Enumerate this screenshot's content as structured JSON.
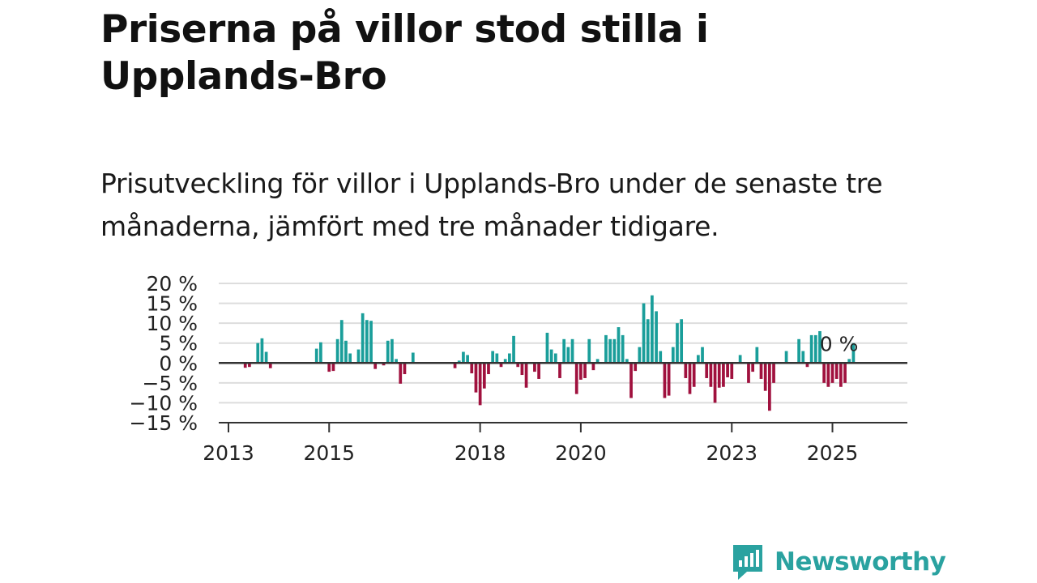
{
  "header": {
    "title": "Priserna på villor stod stilla i Upplands-Bro",
    "subtitle": "Prisutveckling för villor i Upplands-Bro under de senaste tre månaderna, jämfört med tre månader tidigare."
  },
  "brand": {
    "name": "Newsworthy",
    "color": "#2aa2a0",
    "icon": "newsworthy-chart-bubble-icon"
  },
  "colors": {
    "positive": "#1a9e9a",
    "negative": "#a0113e",
    "grid": "#dddddd",
    "axis": "#333333"
  },
  "chart_data": {
    "type": "bar",
    "x_start": "2013-01",
    "x_end": "2026-03",
    "ylim": [
      -15,
      20
    ],
    "yticks": [
      20,
      15,
      10,
      5,
      0,
      -5,
      -10,
      -15
    ],
    "ytick_labels": [
      "20 %",
      "15 %",
      "10 %",
      "5 %",
      "0 %",
      "−5 %",
      "−10 %",
      "−15 %"
    ],
    "xticks": [
      "2013",
      "2015",
      "2018",
      "2020",
      "2023",
      "2025"
    ],
    "end_label": "0 %",
    "grid": true,
    "points": [
      {
        "date": "2013-05",
        "value": -1.2
      },
      {
        "date": "2013-06",
        "value": -1.0
      },
      {
        "date": "2013-08",
        "value": 5.0
      },
      {
        "date": "2013-09",
        "value": 6.2
      },
      {
        "date": "2013-10",
        "value": 2.8
      },
      {
        "date": "2013-11",
        "value": -1.3
      },
      {
        "date": "2014-10",
        "value": 3.6
      },
      {
        "date": "2014-11",
        "value": 5.2
      },
      {
        "date": "2015-01",
        "value": -2.2
      },
      {
        "date": "2015-02",
        "value": -2.0
      },
      {
        "date": "2015-03",
        "value": 6.0
      },
      {
        "date": "2015-04",
        "value": 10.8
      },
      {
        "date": "2015-05",
        "value": 5.6
      },
      {
        "date": "2015-06",
        "value": 2.4
      },
      {
        "date": "2015-08",
        "value": 3.4
      },
      {
        "date": "2015-09",
        "value": 12.5
      },
      {
        "date": "2015-10",
        "value": 10.8
      },
      {
        "date": "2015-11",
        "value": 10.6
      },
      {
        "date": "2015-12",
        "value": -1.5
      },
      {
        "date": "2016-02",
        "value": -0.6
      },
      {
        "date": "2016-03",
        "value": 5.6
      },
      {
        "date": "2016-04",
        "value": 6.0
      },
      {
        "date": "2016-05",
        "value": 1.0
      },
      {
        "date": "2016-06",
        "value": -5.2
      },
      {
        "date": "2016-07",
        "value": -2.8
      },
      {
        "date": "2016-09",
        "value": 2.6
      },
      {
        "date": "2017-07",
        "value": -1.3
      },
      {
        "date": "2017-08",
        "value": 0.6
      },
      {
        "date": "2017-09",
        "value": 2.8
      },
      {
        "date": "2017-10",
        "value": 2.0
      },
      {
        "date": "2017-11",
        "value": -2.6
      },
      {
        "date": "2017-12",
        "value": -7.4
      },
      {
        "date": "2018-01",
        "value": -10.6
      },
      {
        "date": "2018-02",
        "value": -6.4
      },
      {
        "date": "2018-03",
        "value": -2.8
      },
      {
        "date": "2018-04",
        "value": 3.0
      },
      {
        "date": "2018-05",
        "value": 2.4
      },
      {
        "date": "2018-06",
        "value": -1.0
      },
      {
        "date": "2018-07",
        "value": 1.0
      },
      {
        "date": "2018-08",
        "value": 2.4
      },
      {
        "date": "2018-09",
        "value": 6.8
      },
      {
        "date": "2018-10",
        "value": -1.0
      },
      {
        "date": "2018-11",
        "value": -3.0
      },
      {
        "date": "2018-12",
        "value": -6.2
      },
      {
        "date": "2019-02",
        "value": -2.2
      },
      {
        "date": "2019-03",
        "value": -4.0
      },
      {
        "date": "2019-05",
        "value": 7.6
      },
      {
        "date": "2019-06",
        "value": 3.4
      },
      {
        "date": "2019-07",
        "value": 2.4
      },
      {
        "date": "2019-08",
        "value": -3.8
      },
      {
        "date": "2019-09",
        "value": 6.0
      },
      {
        "date": "2019-10",
        "value": 4.0
      },
      {
        "date": "2019-11",
        "value": 6.0
      },
      {
        "date": "2019-12",
        "value": -7.8
      },
      {
        "date": "2020-01",
        "value": -4.2
      },
      {
        "date": "2020-02",
        "value": -3.8
      },
      {
        "date": "2020-03",
        "value": 6.0
      },
      {
        "date": "2020-04",
        "value": -1.8
      },
      {
        "date": "2020-05",
        "value": 1.0
      },
      {
        "date": "2020-07",
        "value": 7.0
      },
      {
        "date": "2020-08",
        "value": 6.0
      },
      {
        "date": "2020-09",
        "value": 6.0
      },
      {
        "date": "2020-10",
        "value": 9.0
      },
      {
        "date": "2020-11",
        "value": 7.0
      },
      {
        "date": "2020-12",
        "value": 1.0
      },
      {
        "date": "2021-01",
        "value": -8.8
      },
      {
        "date": "2021-02",
        "value": -2.0
      },
      {
        "date": "2021-03",
        "value": 4.0
      },
      {
        "date": "2021-04",
        "value": 15.0
      },
      {
        "date": "2021-05",
        "value": 11.0
      },
      {
        "date": "2021-06",
        "value": 17.0
      },
      {
        "date": "2021-07",
        "value": 13.0
      },
      {
        "date": "2021-08",
        "value": 3.0
      },
      {
        "date": "2021-09",
        "value": -8.8
      },
      {
        "date": "2021-10",
        "value": -8.2
      },
      {
        "date": "2021-11",
        "value": 4.0
      },
      {
        "date": "2021-12",
        "value": 10.0
      },
      {
        "date": "2022-01",
        "value": 11.0
      },
      {
        "date": "2022-02",
        "value": -3.8
      },
      {
        "date": "2022-03",
        "value": -7.8
      },
      {
        "date": "2022-04",
        "value": -6.0
      },
      {
        "date": "2022-05",
        "value": 2.0
      },
      {
        "date": "2022-06",
        "value": 4.0
      },
      {
        "date": "2022-07",
        "value": -3.8
      },
      {
        "date": "2022-08",
        "value": -6.0
      },
      {
        "date": "2022-09",
        "value": -10.0
      },
      {
        "date": "2022-10",
        "value": -6.2
      },
      {
        "date": "2022-11",
        "value": -6.0
      },
      {
        "date": "2022-12",
        "value": -3.6
      },
      {
        "date": "2023-01",
        "value": -4.0
      },
      {
        "date": "2023-03",
        "value": 2.0
      },
      {
        "date": "2023-05",
        "value": -5.0
      },
      {
        "date": "2023-06",
        "value": -2.2
      },
      {
        "date": "2023-07",
        "value": 4.0
      },
      {
        "date": "2023-08",
        "value": -4.0
      },
      {
        "date": "2023-09",
        "value": -7.0
      },
      {
        "date": "2023-10",
        "value": -12.0
      },
      {
        "date": "2023-11",
        "value": -5.0
      },
      {
        "date": "2024-02",
        "value": 3.0
      },
      {
        "date": "2024-05",
        "value": 6.0
      },
      {
        "date": "2024-06",
        "value": 3.0
      },
      {
        "date": "2024-07",
        "value": -1.0
      },
      {
        "date": "2024-08",
        "value": 7.0
      },
      {
        "date": "2024-09",
        "value": 7.0
      },
      {
        "date": "2024-10",
        "value": 8.0
      },
      {
        "date": "2024-11",
        "value": -5.0
      },
      {
        "date": "2024-12",
        "value": -6.0
      },
      {
        "date": "2025-01",
        "value": -5.0
      },
      {
        "date": "2025-02",
        "value": -4.0
      },
      {
        "date": "2025-03",
        "value": -6.0
      },
      {
        "date": "2025-04",
        "value": -5.0
      },
      {
        "date": "2025-05",
        "value": 1.0
      },
      {
        "date": "2025-06",
        "value": 5.0
      }
    ]
  }
}
